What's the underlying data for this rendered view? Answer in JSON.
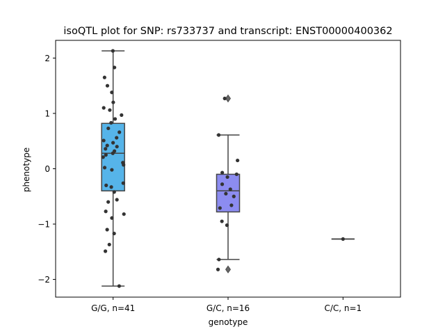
{
  "chart_data": {
    "type": "box",
    "title": "isoQTL plot for SNP: rs733737 and transcript: ENST00000400362",
    "xlabel": "genotype",
    "ylabel": "phenotype",
    "ylim": [
      -2.32,
      2.32
    ],
    "yticks": [
      {
        "value": 2,
        "label": "2"
      },
      {
        "value": 1,
        "label": "1"
      },
      {
        "value": 0,
        "label": "0"
      },
      {
        "value": -1,
        "label": "−1"
      },
      {
        "value": -2,
        "label": "−2"
      }
    ],
    "grid": false,
    "groups": [
      {
        "label": "G/G, n=41",
        "color": "#56B4E9",
        "q1": -0.4,
        "median": 0.28,
        "q3": 0.82,
        "whisker_low": -2.12,
        "whisker_high": 2.13,
        "outliers": [],
        "points": [
          2.13,
          1.83,
          1.65,
          1.5,
          1.38,
          1.2,
          1.1,
          0.97,
          0.9,
          0.83,
          0.73,
          0.66,
          0.56,
          0.51,
          0.47,
          0.42,
          0.4,
          0.36,
          0.32,
          0.28,
          0.25,
          0.21,
          0.11,
          0.07,
          0.02,
          -0.02,
          -0.26,
          -0.3,
          -0.33,
          -0.42,
          -0.56,
          -0.6,
          -0.77,
          -0.82,
          -0.89,
          -1.1,
          -1.17,
          -1.37,
          -1.49,
          -2.12,
          1.06
        ]
      },
      {
        "label": "G/C, n=16",
        "color": "#8C8CF0",
        "q1": -0.78,
        "median": -0.4,
        "q3": -0.1,
        "whisker_low": -1.64,
        "whisker_high": 0.61,
        "outliers": [
          1.27,
          -1.82
        ],
        "points": [
          1.27,
          0.61,
          0.15,
          -0.07,
          -0.1,
          -0.15,
          -0.28,
          -0.37,
          -0.45,
          -0.5,
          -0.66,
          -0.71,
          -0.95,
          -1.02,
          -1.64,
          -1.82
        ]
      },
      {
        "label": "C/C, n=1",
        "color": "#8C8CF0",
        "q1": -1.27,
        "median": -1.27,
        "q3": -1.27,
        "whisker_low": -1.27,
        "whisker_high": -1.27,
        "outliers": [],
        "points": [
          -1.27
        ]
      }
    ]
  }
}
